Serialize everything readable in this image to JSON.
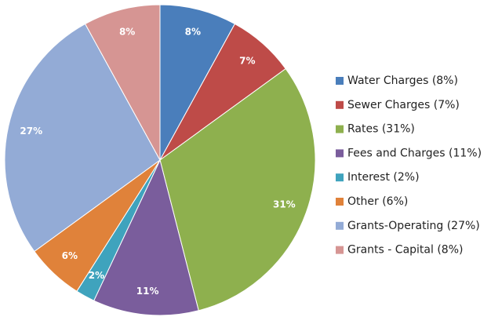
{
  "chart_data": {
    "type": "pie",
    "categories": [
      "Water Charges (8%)",
      "Sewer Charges (7%)",
      "Rates (31%)",
      "Fees and Charges (11%)",
      "Interest (2%)",
      "Other (6%)",
      "Grants-Operating (27%)",
      "Grants - Capital (8%)"
    ],
    "values": [
      8,
      7,
      31,
      11,
      2,
      6,
      27,
      8
    ],
    "value_labels": [
      "8%",
      "7%",
      "31%",
      "11%",
      "2%",
      "6%",
      "27%",
      "8%"
    ],
    "colors": [
      "#4a7ebb",
      "#be4b48",
      "#8eb04e",
      "#7a5d9c",
      "#3fa3bd",
      "#e0823a",
      "#93abd6",
      "#d69593"
    ],
    "legend": "right"
  }
}
